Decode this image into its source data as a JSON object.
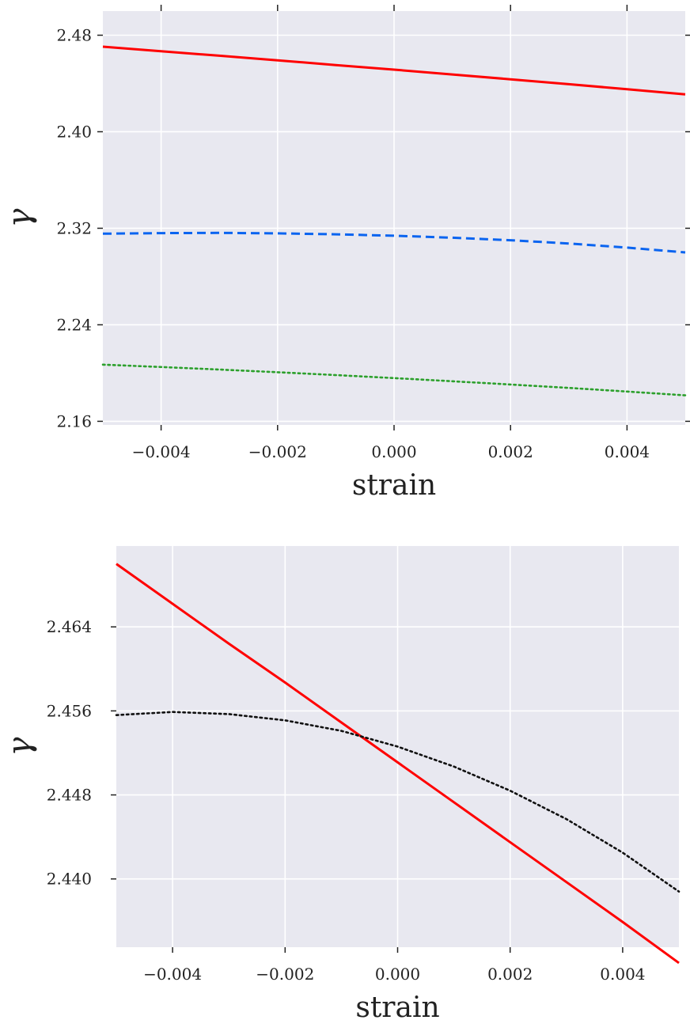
{
  "chart_data": [
    {
      "type": "line",
      "xlabel": "strain",
      "ylabel": "γ",
      "xlim": [
        -0.005,
        0.005
      ],
      "ylim": [
        2.157,
        2.5
      ],
      "x_ticks": [
        -0.004,
        -0.002,
        0.0,
        0.002,
        0.004
      ],
      "x_tick_labels": [
        "−0.004",
        "−0.002",
        "0.000",
        "0.002",
        "0.004"
      ],
      "y_ticks": [
        2.16,
        2.24,
        2.32,
        2.4,
        2.48
      ],
      "y_tick_labels": [
        "2.16",
        "2.24",
        "2.32",
        "2.40",
        "2.48"
      ],
      "grid": true,
      "background": "#e8e8f0",
      "x": [
        -0.005,
        -0.004,
        -0.003,
        -0.002,
        -0.001,
        0.0,
        0.001,
        0.002,
        0.003,
        0.004,
        0.005
      ],
      "series": [
        {
          "color": "#ff0000",
          "style": "solid",
          "values": [
            2.4705,
            2.4667,
            2.463,
            2.4592,
            2.4553,
            2.4515,
            2.4475,
            2.4435,
            2.4394,
            2.4353,
            2.431
          ]
        },
        {
          "color": "#0a64f0",
          "style": "dashed",
          "values": [
            2.3155,
            2.316,
            2.3162,
            2.3158,
            2.315,
            2.3138,
            2.3122,
            2.3101,
            2.3074,
            2.304,
            2.3
          ]
        },
        {
          "color": "#2ca02c",
          "style": "dotted",
          "values": [
            2.207,
            2.205,
            2.2029,
            2.2007,
            2.1983,
            2.1958,
            2.1932,
            2.1905,
            2.1877,
            2.1847,
            2.1815
          ]
        }
      ]
    },
    {
      "type": "line",
      "xlabel": "strain",
      "ylabel": "γ",
      "xlim": [
        -0.005,
        0.005
      ],
      "ylim": [
        2.4335,
        2.4717
      ],
      "x_ticks": [
        -0.004,
        -0.002,
        0.0,
        0.002,
        0.004
      ],
      "x_tick_labels": [
        "−0.004",
        "−0.002",
        "0.000",
        "0.002",
        "0.004"
      ],
      "y_ticks": [
        2.44,
        2.448,
        2.456,
        2.464
      ],
      "y_tick_labels": [
        "2.440",
        "2.448",
        "2.456",
        "2.464"
      ],
      "grid": true,
      "background": "#e8e8f0",
      "x": [
        -0.005,
        -0.004,
        -0.003,
        -0.002,
        -0.001,
        0.0,
        0.001,
        0.002,
        0.003,
        0.004,
        0.005
      ],
      "series": [
        {
          "color": "#ff0000",
          "style": "solid",
          "values": [
            2.47,
            2.4662,
            2.4624,
            2.4587,
            2.4549,
            2.4511,
            2.4473,
            2.4435,
            2.4397,
            2.4359,
            2.432
          ]
        },
        {
          "color": "#111111",
          "style": "dotted",
          "values": [
            2.4556,
            2.4559,
            2.4557,
            2.4551,
            2.4541,
            2.4526,
            2.4507,
            2.4484,
            2.4457,
            2.4425,
            2.4388
          ]
        }
      ]
    }
  ]
}
